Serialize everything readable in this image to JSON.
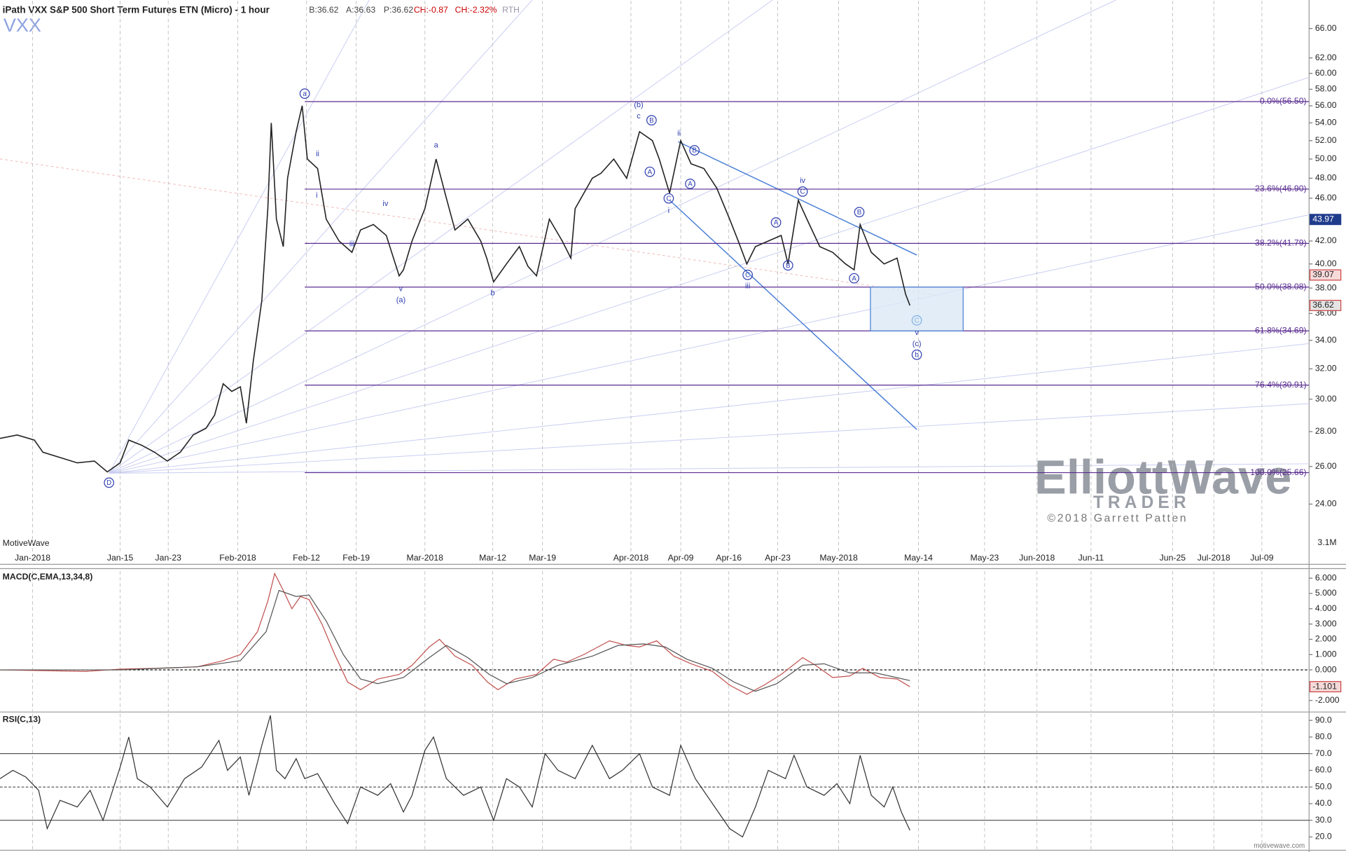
{
  "chart_data": [
    {
      "type": "line",
      "title": "iPath VXX S&P 500 Short Term Futures ETN (Micro) - 1 hour",
      "symbol": "VXX",
      "quote": [
        "B:36.62",
        "A:36.63",
        "P:36.62",
        "CH:-0.87",
        "CH:-2.32%",
        "RTH"
      ],
      "log_scale": true,
      "xlim": [
        0,
        1525
      ],
      "ylim": [
        21,
        70
      ],
      "xticks": [
        {
          "value": 38,
          "label": "Jan-2018"
        },
        {
          "value": 140,
          "label": "Jan-15"
        },
        {
          "value": 196,
          "label": "Jan-23"
        },
        {
          "value": 277,
          "label": "Feb-2018"
        },
        {
          "value": 357,
          "label": "Feb-12"
        },
        {
          "value": 415,
          "label": "Feb-19"
        },
        {
          "value": 495,
          "label": "Mar-2018"
        },
        {
          "value": 574,
          "label": "Mar-12"
        },
        {
          "value": 632,
          "label": "Mar-19"
        },
        {
          "value": 735,
          "label": "Apr-2018"
        },
        {
          "value": 793,
          "label": "Apr-09"
        },
        {
          "value": 849,
          "label": "Apr-16"
        },
        {
          "value": 906,
          "label": "Apr-23"
        },
        {
          "value": 977,
          "label": "May-2018"
        },
        {
          "value": 1070,
          "label": "May-14"
        },
        {
          "value": 1147,
          "label": "May-23"
        },
        {
          "value": 1208,
          "label": "Jun-2018"
        },
        {
          "value": 1271,
          "label": "Jun-11"
        },
        {
          "value": 1366,
          "label": "Jun-25"
        },
        {
          "value": 1414,
          "label": "Jul-2018"
        },
        {
          "value": 1470,
          "label": "Jul-09"
        }
      ],
      "yticks": [
        {
          "value": 24,
          "label": "24.00"
        },
        {
          "value": 26,
          "label": "26.00"
        },
        {
          "value": 28,
          "label": "28.00"
        },
        {
          "value": 30,
          "label": "30.00"
        },
        {
          "value": 32,
          "label": "32.00"
        },
        {
          "value": 34,
          "label": "34.00"
        },
        {
          "value": 36,
          "label": "36.00"
        },
        {
          "value": 38,
          "label": "38.00"
        },
        {
          "value": 40,
          "label": "40.00"
        },
        {
          "value": 42,
          "label": "42.00"
        },
        {
          "value": 46,
          "label": "46.00"
        },
        {
          "value": 48,
          "label": "48.00"
        },
        {
          "value": 50,
          "label": "50.00"
        },
        {
          "value": 52,
          "label": "52.00"
        },
        {
          "value": 54,
          "label": "54.00"
        },
        {
          "value": 56,
          "label": "56.00"
        },
        {
          "value": 58,
          "label": "58.00"
        },
        {
          "value": 60,
          "label": "60.00"
        },
        {
          "value": 62,
          "label": "62.00"
        },
        {
          "value": 66,
          "label": "66.00"
        }
      ],
      "series": [
        {
          "name": "VXX",
          "color": "#222222",
          "x": [
            0,
            20,
            40,
            50,
            70,
            90,
            110,
            125,
            140,
            150,
            165,
            180,
            195,
            210,
            225,
            240,
            250,
            260,
            270,
            280,
            287,
            295,
            305,
            312,
            316,
            322,
            330,
            335,
            345,
            352,
            358,
            370,
            380,
            395,
            410,
            420,
            435,
            450,
            465,
            470,
            480,
            495,
            508,
            520,
            530,
            545,
            560,
            567,
            575,
            590,
            605,
            615,
            625,
            640,
            655,
            665,
            670,
            690,
            700,
            715,
            730,
            745,
            760,
            768,
            780,
            793,
            805,
            820,
            835,
            850,
            860,
            870,
            880,
            895,
            910,
            918,
            930,
            940,
            955,
            970,
            985,
            995,
            1002,
            1015,
            1030,
            1045,
            1055,
            1060
          ],
          "values": [
            27.6,
            27.8,
            27.5,
            26.8,
            26.5,
            26.2,
            26.3,
            25.7,
            26.2,
            27.5,
            27.2,
            26.8,
            26.3,
            26.8,
            27.8,
            28.2,
            29,
            31,
            30.5,
            30.8,
            28.5,
            32.5,
            37,
            45,
            54,
            44,
            41.5,
            48,
            53,
            56,
            50,
            49,
            44,
            42,
            41,
            43,
            43.5,
            42.5,
            39,
            39.5,
            42,
            45,
            50,
            46,
            43,
            44,
            42,
            40.5,
            38.5,
            40,
            41.5,
            39.8,
            39,
            44,
            42,
            40.5,
            45,
            48,
            48.5,
            50,
            48,
            53,
            52,
            50,
            46.5,
            52,
            49.5,
            49,
            47,
            44,
            42,
            40,
            41.5,
            42,
            42.5,
            40,
            45.8,
            44,
            41.5,
            41,
            40,
            39.5,
            43.5,
            41,
            40,
            40.5,
            37.5,
            36.62
          ]
        }
      ],
      "price_markers": [
        43.97,
        39.07,
        36.62
      ],
      "marker_colors": [
        "#1f3c8c",
        "#f6dada",
        "#e4e4e4"
      ],
      "fib_levels": [
        {
          "value": 56.5,
          "label": "0.0%(56.50)"
        },
        {
          "value": 46.9,
          "label": "23.6%(46.90)"
        },
        {
          "value": 41.79,
          "label": "38.2%(41.79)"
        },
        {
          "value": 38.08,
          "label": "50.0%(38.08)"
        },
        {
          "value": 34.69,
          "label": "61.8%(34.69)"
        },
        {
          "value": 30.91,
          "label": "76.4%(30.91)"
        },
        {
          "value": 25.66,
          "label": "100.0%(25.66)"
        }
      ],
      "fib_color": "#5a2d91",
      "annotations": [
        "a",
        "ii",
        "i",
        "iii",
        "iv",
        "v",
        "(a)",
        "a",
        "b",
        "(b)",
        "c",
        "B",
        "A",
        "C",
        "i",
        "ii",
        "B",
        "A",
        "A",
        "B",
        "C",
        "iii",
        "iv",
        "C",
        "B",
        "A",
        "C",
        "v",
        "(c)",
        "b",
        "D"
      ],
      "annotation_color": "#2f3fb0",
      "volume_label": "3.1M",
      "vendor": "MotiveWave"
    },
    {
      "type": "line",
      "title": "MACD(C,EMA,13,34,8)",
      "xlim": [
        0,
        1525
      ],
      "ylim": [
        -2.7,
        6.46
      ],
      "yticks": [
        {
          "value": -2,
          "label": "-2.000"
        },
        {
          "value": 0,
          "label": "0.000"
        },
        {
          "value": 1,
          "label": "1.000"
        },
        {
          "value": 2,
          "label": "2.000"
        },
        {
          "value": 3,
          "label": "3.000"
        },
        {
          "value": 4,
          "label": "4.000"
        },
        {
          "value": 5,
          "label": "5.000"
        },
        {
          "value": 6,
          "label": "6.000"
        }
      ],
      "series": [
        {
          "name": "MACD",
          "color": "#c0504d",
          "x": [
            0,
            100,
            140,
            180,
            230,
            260,
            280,
            300,
            312,
            320,
            330,
            340,
            350,
            360,
            375,
            390,
            405,
            420,
            440,
            465,
            480,
            500,
            512,
            530,
            550,
            568,
            580,
            600,
            625,
            645,
            660,
            680,
            710,
            730,
            745,
            765,
            785,
            805,
            830,
            850,
            870,
            890,
            910,
            935,
            950,
            970,
            990,
            1005,
            1025,
            1045,
            1060
          ],
          "values": [
            0,
            -0.1,
            0.05,
            0.1,
            0.2,
            0.6,
            1.0,
            2.5,
            4.5,
            6.3,
            5.2,
            4.0,
            4.8,
            4.6,
            3.0,
            1.0,
            -0.8,
            -1.3,
            -0.6,
            -0.3,
            0.3,
            1.5,
            2.0,
            0.9,
            0.3,
            -0.8,
            -1.3,
            -0.6,
            -0.3,
            0.7,
            0.5,
            1.0,
            1.9,
            1.6,
            1.5,
            1.9,
            0.9,
            0.4,
            -0.1,
            -1.0,
            -1.6,
            -1.0,
            -0.3,
            0.8,
            0.3,
            -0.5,
            -0.4,
            0.1,
            -0.5,
            -0.6,
            -1.101
          ]
        },
        {
          "name": "Signal",
          "color": "#555555",
          "x": [
            0,
            140,
            230,
            280,
            310,
            325,
            345,
            360,
            380,
            400,
            420,
            440,
            470,
            500,
            520,
            545,
            570,
            590,
            620,
            650,
            690,
            720,
            750,
            775,
            800,
            830,
            855,
            880,
            905,
            935,
            960,
            990,
            1020,
            1060
          ],
          "values": [
            0,
            0,
            0.2,
            0.6,
            2.5,
            5.2,
            4.8,
            4.9,
            3.2,
            1.0,
            -0.6,
            -0.9,
            -0.5,
            0.8,
            1.6,
            0.8,
            -0.3,
            -0.9,
            -0.5,
            0.3,
            0.9,
            1.6,
            1.7,
            1.5,
            0.7,
            0.1,
            -0.8,
            -1.4,
            -0.9,
            0.3,
            0.4,
            -0.2,
            -0.2,
            -0.7
          ]
        }
      ],
      "price_markers": [
        -1.101
      ],
      "marker_colors": [
        "#f6dada"
      ]
    },
    {
      "type": "line",
      "title": "RSI(C,13)",
      "xlim": [
        0,
        1525
      ],
      "ylim": [
        12,
        94
      ],
      "yticks": [
        {
          "value": 20,
          "label": "20.0"
        },
        {
          "value": 30,
          "label": "30.0"
        },
        {
          "value": 40,
          "label": "40.0"
        },
        {
          "value": 50,
          "label": "50.0"
        },
        {
          "value": 60,
          "label": "60.0"
        },
        {
          "value": 70,
          "label": "70.0"
        },
        {
          "value": 80,
          "label": "80.0"
        },
        {
          "value": 90,
          "label": "90.0"
        }
      ],
      "levels": [
        70,
        50,
        30
      ],
      "series": [
        {
          "name": "RSI",
          "color": "#333333",
          "x": [
            0,
            15,
            30,
            45,
            55,
            70,
            90,
            105,
            120,
            140,
            150,
            160,
            175,
            195,
            215,
            235,
            255,
            265,
            280,
            290,
            305,
            315,
            322,
            332,
            345,
            355,
            370,
            390,
            405,
            420,
            440,
            455,
            470,
            480,
            495,
            505,
            520,
            540,
            560,
            575,
            590,
            605,
            620,
            635,
            650,
            670,
            690,
            710,
            725,
            745,
            760,
            780,
            793,
            810,
            830,
            850,
            865,
            880,
            895,
            915,
            925,
            940,
            960,
            975,
            990,
            1002,
            1015,
            1030,
            1040,
            1050,
            1060
          ],
          "values": [
            55,
            60,
            56,
            48,
            25,
            42,
            38,
            48,
            30,
            62,
            80,
            55,
            50,
            38,
            55,
            62,
            78,
            60,
            68,
            45,
            75,
            93,
            60,
            55,
            67,
            55,
            58,
            40,
            28,
            50,
            45,
            52,
            35,
            45,
            72,
            80,
            55,
            45,
            50,
            30,
            55,
            50,
            38,
            70,
            60,
            55,
            75,
            55,
            60,
            70,
            50,
            45,
            75,
            55,
            40,
            25,
            20,
            38,
            60,
            55,
            69,
            50,
            45,
            52,
            40,
            69,
            45,
            38,
            50,
            35,
            24
          ]
        }
      ]
    }
  ],
  "watermark": {
    "brand": "ElliottWave",
    "sub": "TRADER",
    "copyright": "©2018 Garrett Patten",
    "site": "motivewave.com"
  }
}
